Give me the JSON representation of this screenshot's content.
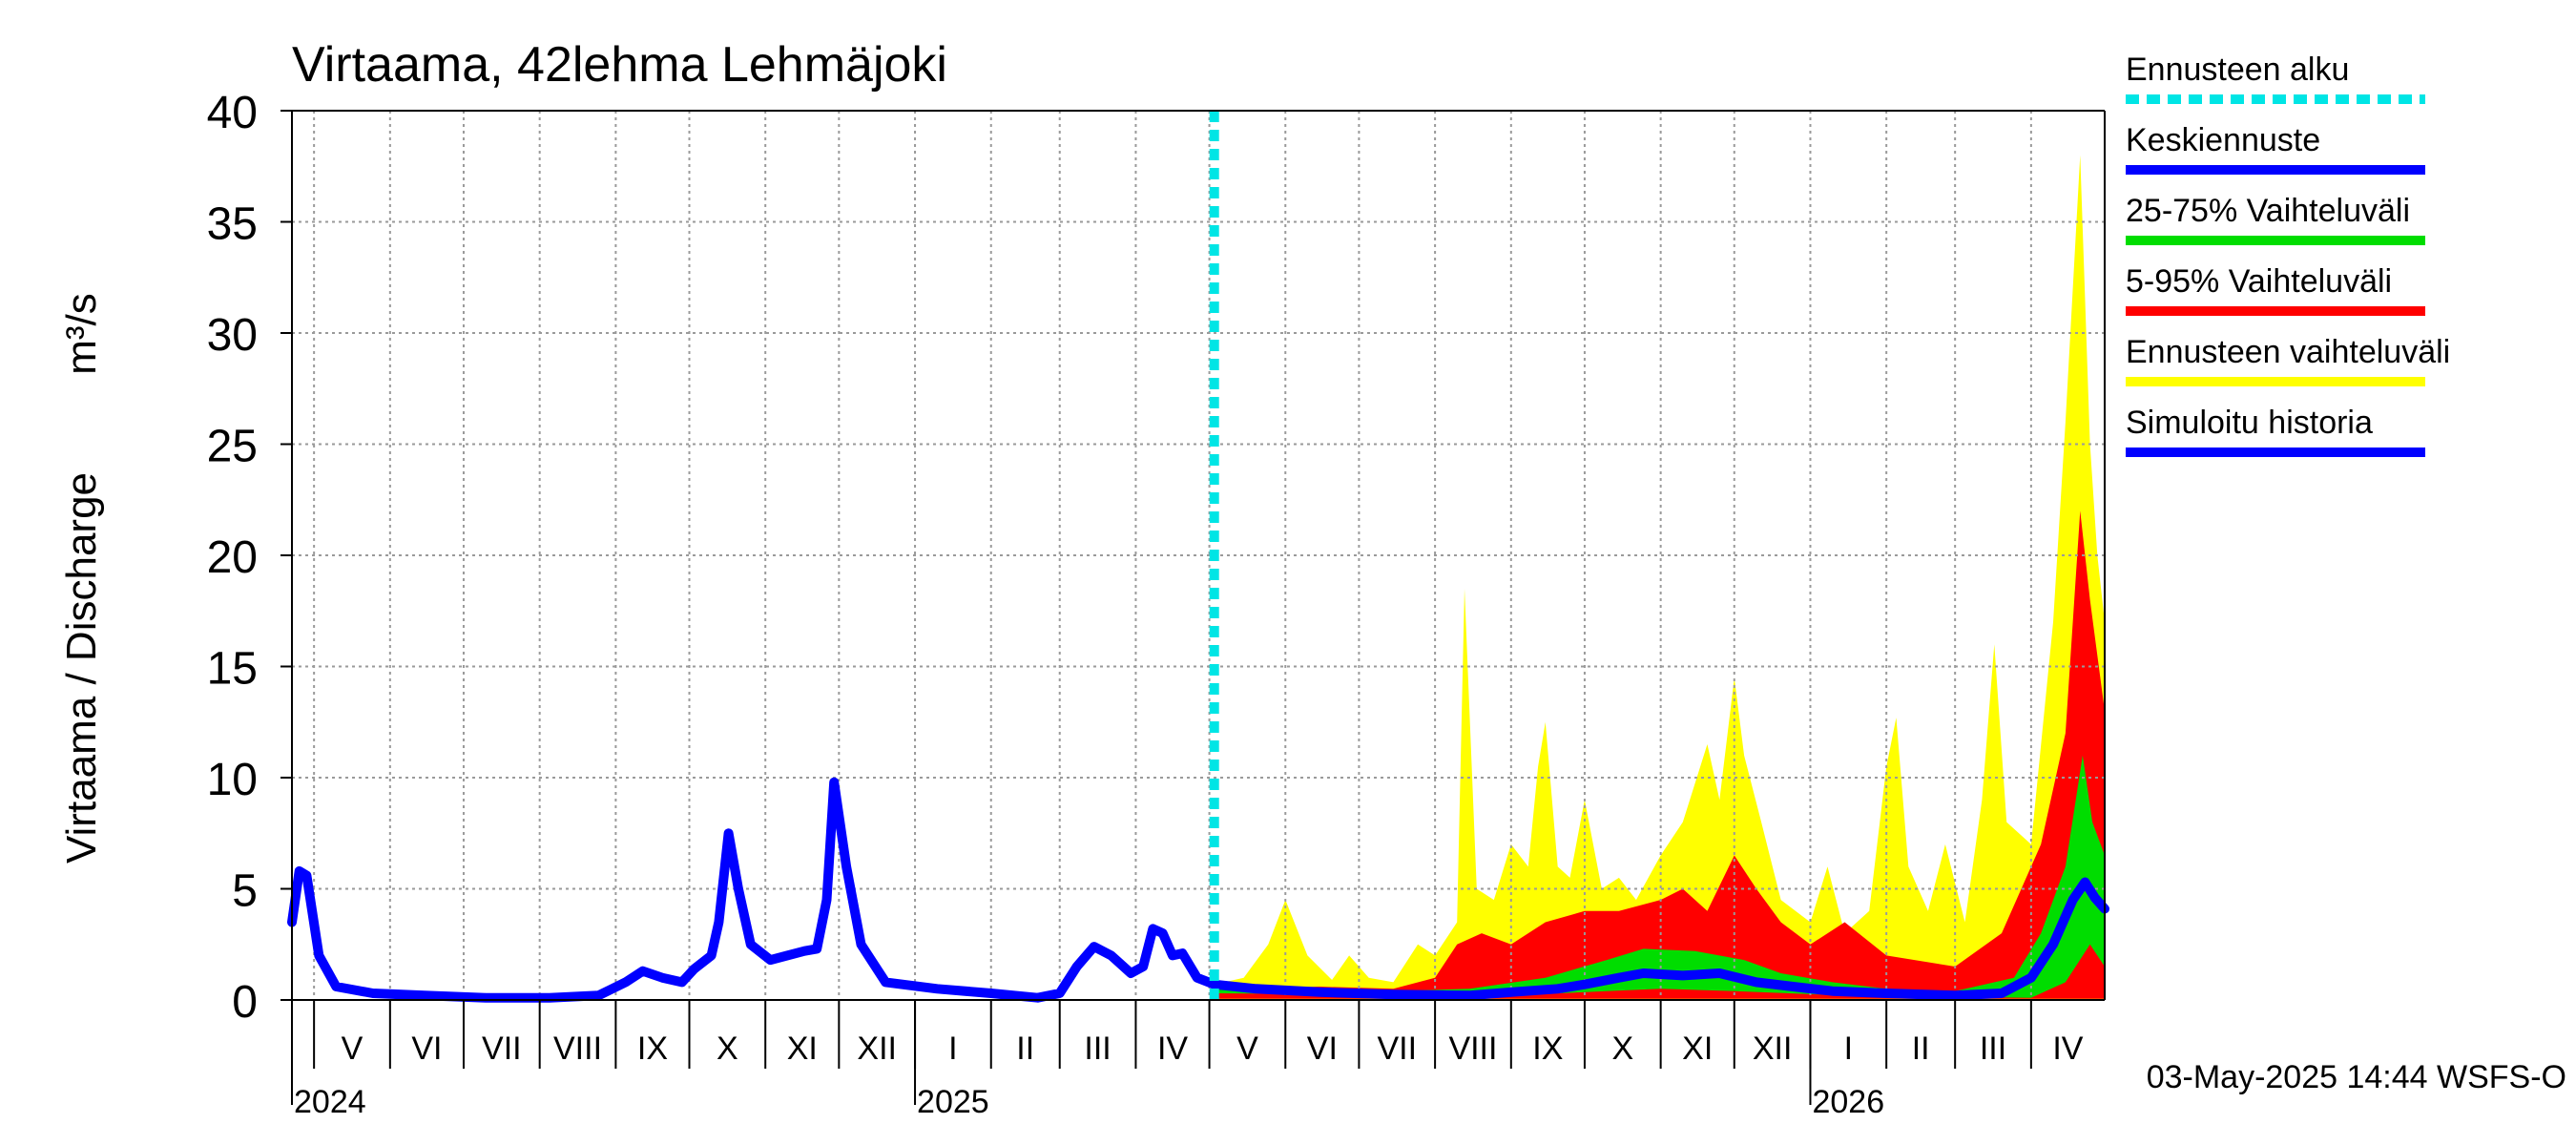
{
  "chart_data": {
    "type": "area",
    "title": "Virtaama, 42lehma Lehmäjoki",
    "ylabel": "Virtaama / Discharge",
    "yunit": "m³/s",
    "ylim": [
      0,
      40
    ],
    "yticks": [
      0,
      5,
      10,
      15,
      20,
      25,
      30,
      35,
      40
    ],
    "grid": true,
    "legend_position": "right",
    "xlim": [
      "2024-04-22",
      "2026-05-01"
    ],
    "forecast_start": "2025-05-03",
    "month_labels": [
      {
        "label": "V",
        "start": "2024-05-01"
      },
      {
        "label": "VI",
        "start": "2024-06-01"
      },
      {
        "label": "VII",
        "start": "2024-07-01"
      },
      {
        "label": "VIII",
        "start": "2024-08-01"
      },
      {
        "label": "IX",
        "start": "2024-09-01"
      },
      {
        "label": "X",
        "start": "2024-10-01"
      },
      {
        "label": "XI",
        "start": "2024-11-01"
      },
      {
        "label": "XII",
        "start": "2024-12-01"
      },
      {
        "label": "I",
        "start": "2025-01-01"
      },
      {
        "label": "II",
        "start": "2025-02-01"
      },
      {
        "label": "III",
        "start": "2025-03-01"
      },
      {
        "label": "IV",
        "start": "2025-04-01"
      },
      {
        "label": "V",
        "start": "2025-05-01"
      },
      {
        "label": "VI",
        "start": "2025-06-01"
      },
      {
        "label": "VII",
        "start": "2025-07-01"
      },
      {
        "label": "VIII",
        "start": "2025-08-01"
      },
      {
        "label": "IX",
        "start": "2025-09-01"
      },
      {
        "label": "X",
        "start": "2025-10-01"
      },
      {
        "label": "XI",
        "start": "2025-11-01"
      },
      {
        "label": "XII",
        "start": "2025-12-01"
      },
      {
        "label": "I",
        "start": "2026-01-01"
      },
      {
        "label": "II",
        "start": "2026-02-01"
      },
      {
        "label": "III",
        "start": "2026-03-01"
      },
      {
        "label": "IV",
        "start": "2026-04-01"
      }
    ],
    "year_labels": [
      {
        "label": "2024",
        "date": "2024-04-22"
      },
      {
        "label": "2025",
        "date": "2025-01-01"
      },
      {
        "label": "2026",
        "date": "2026-01-01"
      }
    ],
    "legend": [
      {
        "label": "Ennusteen alku",
        "color": "#00e5e5",
        "style": "dashed"
      },
      {
        "label": "Keskiennuste",
        "color": "#0000ff",
        "style": "solid"
      },
      {
        "label": "25-75% Vaihteluväli",
        "color": "#00dd00",
        "style": "solid"
      },
      {
        "label": "5-95% Vaihteluväli",
        "color": "#ff0000",
        "style": "solid"
      },
      {
        "label": "Ennusteen vaihteluväli",
        "color": "#ffff00",
        "style": "solid"
      },
      {
        "label": "Simuloitu historia",
        "color": "#0000ff",
        "style": "solid"
      }
    ],
    "series": [
      {
        "name": "Simuloitu historia",
        "color": "#0000ff",
        "points": [
          [
            "2024-04-22",
            3.5
          ],
          [
            "2024-04-25",
            5.8
          ],
          [
            "2024-04-28",
            5.6
          ],
          [
            "2024-05-03",
            2.0
          ],
          [
            "2024-05-10",
            0.6
          ],
          [
            "2024-05-25",
            0.3
          ],
          [
            "2024-06-15",
            0.2
          ],
          [
            "2024-07-10",
            0.1
          ],
          [
            "2024-08-05",
            0.1
          ],
          [
            "2024-08-25",
            0.2
          ],
          [
            "2024-09-05",
            0.8
          ],
          [
            "2024-09-12",
            1.3
          ],
          [
            "2024-09-20",
            1.0
          ],
          [
            "2024-09-28",
            0.8
          ],
          [
            "2024-10-03",
            1.4
          ],
          [
            "2024-10-10",
            2.0
          ],
          [
            "2024-10-13",
            3.5
          ],
          [
            "2024-10-17",
            7.5
          ],
          [
            "2024-10-21",
            5.0
          ],
          [
            "2024-10-26",
            2.5
          ],
          [
            "2024-11-03",
            1.8
          ],
          [
            "2024-11-10",
            2.0
          ],
          [
            "2024-11-17",
            2.2
          ],
          [
            "2024-11-22",
            2.3
          ],
          [
            "2024-11-26",
            4.5
          ],
          [
            "2024-11-29",
            9.8
          ],
          [
            "2024-12-04",
            6.0
          ],
          [
            "2024-12-10",
            2.5
          ],
          [
            "2024-12-20",
            0.8
          ],
          [
            "2025-01-10",
            0.5
          ],
          [
            "2025-02-01",
            0.3
          ],
          [
            "2025-02-20",
            0.1
          ],
          [
            "2025-03-01",
            0.3
          ],
          [
            "2025-03-08",
            1.5
          ],
          [
            "2025-03-15",
            2.4
          ],
          [
            "2025-03-22",
            2.0
          ],
          [
            "2025-03-30",
            1.2
          ],
          [
            "2025-04-04",
            1.5
          ],
          [
            "2025-04-08",
            3.2
          ],
          [
            "2025-04-12",
            3.0
          ],
          [
            "2025-04-16",
            2.0
          ],
          [
            "2025-04-20",
            2.1
          ],
          [
            "2025-04-26",
            1.0
          ],
          [
            "2025-05-03",
            0.7
          ]
        ]
      },
      {
        "name": "Keskiennuste",
        "color": "#0000ff",
        "points": [
          [
            "2025-05-03",
            0.7
          ],
          [
            "2025-05-20",
            0.5
          ],
          [
            "2025-06-15",
            0.35
          ],
          [
            "2025-07-15",
            0.25
          ],
          [
            "2025-08-15",
            0.2
          ],
          [
            "2025-09-01",
            0.35
          ],
          [
            "2025-09-20",
            0.5
          ],
          [
            "2025-10-01",
            0.7
          ],
          [
            "2025-10-15",
            1.0
          ],
          [
            "2025-10-25",
            1.2
          ],
          [
            "2025-11-10",
            1.1
          ],
          [
            "2025-11-25",
            1.2
          ],
          [
            "2025-12-10",
            0.8
          ],
          [
            "2025-12-25",
            0.6
          ],
          [
            "2026-01-10",
            0.4
          ],
          [
            "2026-02-01",
            0.3
          ],
          [
            "2026-03-01",
            0.2
          ],
          [
            "2026-03-20",
            0.3
          ],
          [
            "2026-04-01",
            1.0
          ],
          [
            "2026-04-10",
            2.5
          ],
          [
            "2026-04-18",
            4.5
          ],
          [
            "2026-04-23",
            5.3
          ],
          [
            "2026-04-27",
            4.6
          ],
          [
            "2026-05-01",
            4.1
          ]
        ]
      }
    ],
    "bands": [
      {
        "name": "Ennusteen vaihteluväli",
        "color": "#ffff00",
        "lower": [
          [
            "2025-05-03",
            0.0
          ],
          [
            "2026-05-01",
            0.0
          ]
        ],
        "upper": [
          [
            "2025-05-03",
            0.7
          ],
          [
            "2025-05-15",
            1.0
          ],
          [
            "2025-05-25",
            2.5
          ],
          [
            "2025-06-01",
            4.5
          ],
          [
            "2025-06-10",
            2.0
          ],
          [
            "2025-06-20",
            0.9
          ],
          [
            "2025-06-27",
            2.0
          ],
          [
            "2025-07-05",
            1.0
          ],
          [
            "2025-07-15",
            0.8
          ],
          [
            "2025-07-25",
            2.5
          ],
          [
            "2025-08-01",
            2.0
          ],
          [
            "2025-08-10",
            3.5
          ],
          [
            "2025-08-13",
            18.5
          ],
          [
            "2025-08-18",
            5.0
          ],
          [
            "2025-08-25",
            4.5
          ],
          [
            "2025-09-01",
            7.0
          ],
          [
            "2025-09-08",
            6.0
          ],
          [
            "2025-09-12",
            10.5
          ],
          [
            "2025-09-15",
            12.5
          ],
          [
            "2025-09-20",
            6.0
          ],
          [
            "2025-09-25",
            5.5
          ],
          [
            "2025-10-01",
            9.0
          ],
          [
            "2025-10-08",
            5.0
          ],
          [
            "2025-10-15",
            5.5
          ],
          [
            "2025-10-22",
            4.5
          ],
          [
            "2025-11-01",
            6.5
          ],
          [
            "2025-11-10",
            8.0
          ],
          [
            "2025-11-20",
            11.5
          ],
          [
            "2025-11-25",
            9.0
          ],
          [
            "2025-12-01",
            14.5
          ],
          [
            "2025-12-05",
            11.0
          ],
          [
            "2025-12-12",
            8.0
          ],
          [
            "2025-12-20",
            4.5
          ],
          [
            "2026-01-01",
            3.5
          ],
          [
            "2026-01-08",
            6.0
          ],
          [
            "2026-01-15",
            3.0
          ],
          [
            "2026-01-25",
            4.0
          ],
          [
            "2026-02-01",
            10.5
          ],
          [
            "2026-02-05",
            12.7
          ],
          [
            "2026-02-10",
            6.0
          ],
          [
            "2026-02-18",
            4.0
          ],
          [
            "2026-02-25",
            7.0
          ],
          [
            "2026-03-05",
            3.5
          ],
          [
            "2026-03-12",
            9.0
          ],
          [
            "2026-03-17",
            16.0
          ],
          [
            "2026-03-22",
            8.0
          ],
          [
            "2026-04-01",
            7.0
          ],
          [
            "2026-04-10",
            17.0
          ],
          [
            "2026-04-15",
            26.0
          ],
          [
            "2026-04-21",
            38.0
          ],
          [
            "2026-04-25",
            25.0
          ],
          [
            "2026-04-28",
            20.0
          ],
          [
            "2026-05-01",
            17.0
          ]
        ]
      },
      {
        "name": "5-95% Vaihteluväli",
        "color": "#ff0000",
        "lower": [
          [
            "2025-05-03",
            0.05
          ],
          [
            "2026-05-01",
            0.05
          ]
        ],
        "upper": [
          [
            "2025-05-03",
            0.6
          ],
          [
            "2025-05-20",
            0.5
          ],
          [
            "2025-06-15",
            0.6
          ],
          [
            "2025-07-15",
            0.5
          ],
          [
            "2025-08-01",
            1.0
          ],
          [
            "2025-08-10",
            2.5
          ],
          [
            "2025-08-20",
            3.0
          ],
          [
            "2025-09-01",
            2.5
          ],
          [
            "2025-09-15",
            3.5
          ],
          [
            "2025-10-01",
            4.0
          ],
          [
            "2025-10-15",
            4.0
          ],
          [
            "2025-11-01",
            4.5
          ],
          [
            "2025-11-10",
            5.0
          ],
          [
            "2025-11-20",
            4.0
          ],
          [
            "2025-12-01",
            6.5
          ],
          [
            "2025-12-10",
            5.0
          ],
          [
            "2025-12-20",
            3.5
          ],
          [
            "2026-01-01",
            2.5
          ],
          [
            "2026-01-15",
            3.5
          ],
          [
            "2026-02-01",
            2.0
          ],
          [
            "2026-03-01",
            1.5
          ],
          [
            "2026-03-20",
            3.0
          ],
          [
            "2026-04-05",
            7.0
          ],
          [
            "2026-04-15",
            12.0
          ],
          [
            "2026-04-21",
            22.0
          ],
          [
            "2026-04-25",
            18.0
          ],
          [
            "2026-05-01",
            13.0
          ]
        ]
      },
      {
        "name": "25-75% Vaihteluväli",
        "color": "#00dd00",
        "lower": [
          [
            "2025-05-03",
            0.3
          ],
          [
            "2025-09-01",
            0.2
          ],
          [
            "2025-11-01",
            0.5
          ],
          [
            "2025-12-01",
            0.4
          ],
          [
            "2026-01-15",
            0.2
          ],
          [
            "2026-04-01",
            0.1
          ],
          [
            "2026-04-15",
            0.8
          ],
          [
            "2026-04-25",
            2.5
          ],
          [
            "2026-05-01",
            1.5
          ]
        ],
        "upper": [
          [
            "2025-05-03",
            0.7
          ],
          [
            "2025-07-01",
            0.35
          ],
          [
            "2025-08-15",
            0.5
          ],
          [
            "2025-09-15",
            1.0
          ],
          [
            "2025-10-10",
            1.8
          ],
          [
            "2025-10-25",
            2.3
          ],
          [
            "2025-11-15",
            2.2
          ],
          [
            "2025-12-05",
            1.8
          ],
          [
            "2025-12-20",
            1.2
          ],
          [
            "2026-01-10",
            0.8
          ],
          [
            "2026-02-01",
            0.5
          ],
          [
            "2026-03-01",
            0.4
          ],
          [
            "2026-03-25",
            1.0
          ],
          [
            "2026-04-05",
            3.0
          ],
          [
            "2026-04-15",
            6.0
          ],
          [
            "2026-04-22",
            11.0
          ],
          [
            "2026-04-26",
            8.0
          ],
          [
            "2026-05-01",
            6.5
          ]
        ]
      }
    ],
    "footer": "03-May-2025 14:44 WSFS-O"
  }
}
